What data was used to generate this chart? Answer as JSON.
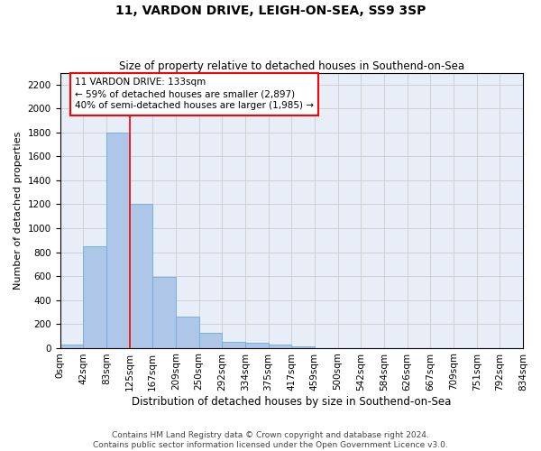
{
  "title": "11, VARDON DRIVE, LEIGH-ON-SEA, SS9 3SP",
  "subtitle": "Size of property relative to detached houses in Southend-on-Sea",
  "xlabel": "Distribution of detached houses by size in Southend-on-Sea",
  "ylabel": "Number of detached properties",
  "bar_values": [
    25,
    850,
    1800,
    1200,
    590,
    260,
    125,
    50,
    45,
    30,
    15,
    0,
    0,
    0,
    0,
    0,
    0,
    0,
    0,
    0
  ],
  "bin_labels": [
    "0sqm",
    "42sqm",
    "83sqm",
    "125sqm",
    "167sqm",
    "209sqm",
    "250sqm",
    "292sqm",
    "334sqm",
    "375sqm",
    "417sqm",
    "459sqm",
    "500sqm",
    "542sqm",
    "584sqm",
    "626sqm",
    "667sqm",
    "709sqm",
    "751sqm",
    "792sqm",
    "834sqm"
  ],
  "bar_color": "#aec6e8",
  "bar_edge_color": "#6aaed6",
  "grid_color": "#cccccc",
  "bg_color": "#e8eef8",
  "annotation_text": "11 VARDON DRIVE: 133sqm\n← 59% of detached houses are smaller (2,897)\n40% of semi-detached houses are larger (1,985) →",
  "vline_x": 2.5,
  "ylim": [
    0,
    2300
  ],
  "yticks": [
    0,
    200,
    400,
    600,
    800,
    1000,
    1200,
    1400,
    1600,
    1800,
    2000,
    2200
  ],
  "footer_line1": "Contains HM Land Registry data © Crown copyright and database right 2024.",
  "footer_line2": "Contains public sector information licensed under the Open Government Licence v3.0.",
  "fig_width": 6.0,
  "fig_height": 5.0,
  "title_fontsize": 10,
  "subtitle_fontsize": 8.5,
  "ylabel_fontsize": 8,
  "xlabel_fontsize": 8.5,
  "tick_fontsize": 7.5,
  "annot_fontsize": 7.5,
  "footer_fontsize": 6.5
}
